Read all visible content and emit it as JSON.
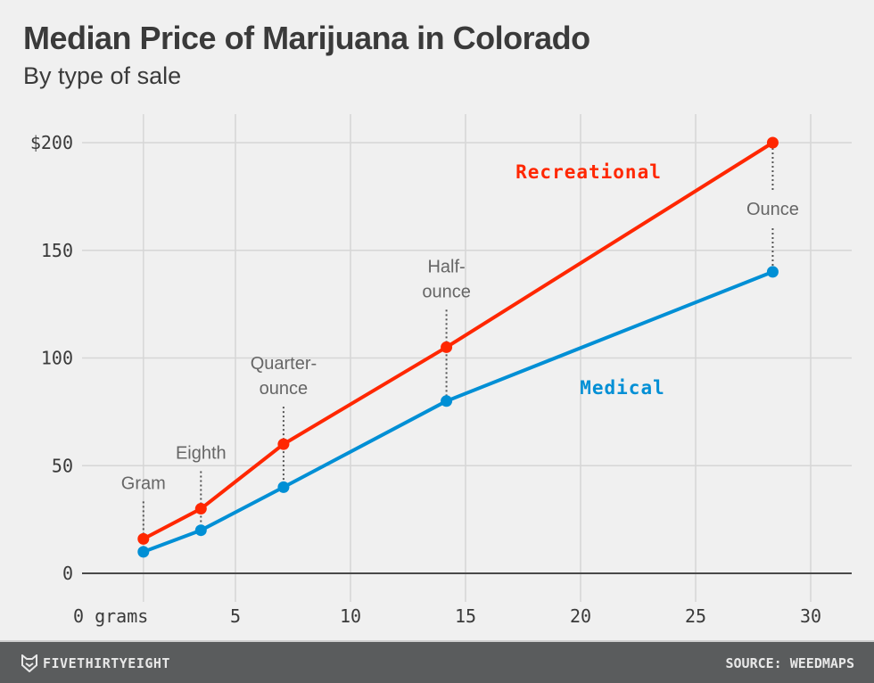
{
  "chart_data": {
    "type": "line",
    "title": "Median Price of Marijuana in Colorado",
    "subtitle": "By type of sale",
    "xlabel": "grams",
    "ylabel": "",
    "xlim": [
      0,
      30
    ],
    "ylim": [
      0,
      200
    ],
    "x_ticks": [
      0,
      5,
      10,
      15,
      20,
      25,
      30
    ],
    "x_tick_labels": [
      "0 grams",
      "5",
      "10",
      "15",
      "20",
      "25",
      "30"
    ],
    "y_ticks": [
      0,
      50,
      100,
      150,
      200
    ],
    "y_tick_labels": [
      "0",
      "50",
      "100",
      "150",
      "$200"
    ],
    "grid": true,
    "x": [
      1,
      3.5,
      7.09,
      14.17,
      28.35
    ],
    "categories": [
      "Gram",
      "Eighth",
      "Quarter-ounce",
      "Half-ounce",
      "Ounce"
    ],
    "series": [
      {
        "name": "Recreational",
        "color": "#ff2700",
        "values": [
          16,
          30,
          60,
          105,
          200
        ]
      },
      {
        "name": "Medical",
        "color": "#008fd5",
        "values": [
          10,
          20,
          40,
          80,
          140
        ]
      }
    ],
    "annotations": [
      {
        "label": [
          "Gram"
        ],
        "x": 1
      },
      {
        "label": [
          "Eighth"
        ],
        "x": 3.5
      },
      {
        "label": [
          "Quarter-",
          "ounce"
        ],
        "x": 7.09
      },
      {
        "label": [
          "Half-",
          "ounce"
        ],
        "x": 14.17
      },
      {
        "label": [
          "Ounce"
        ],
        "x": 28.35
      }
    ]
  },
  "footer": {
    "brand": "FIVETHIRTYEIGHT",
    "source": "SOURCE: WEEDMAPS"
  }
}
